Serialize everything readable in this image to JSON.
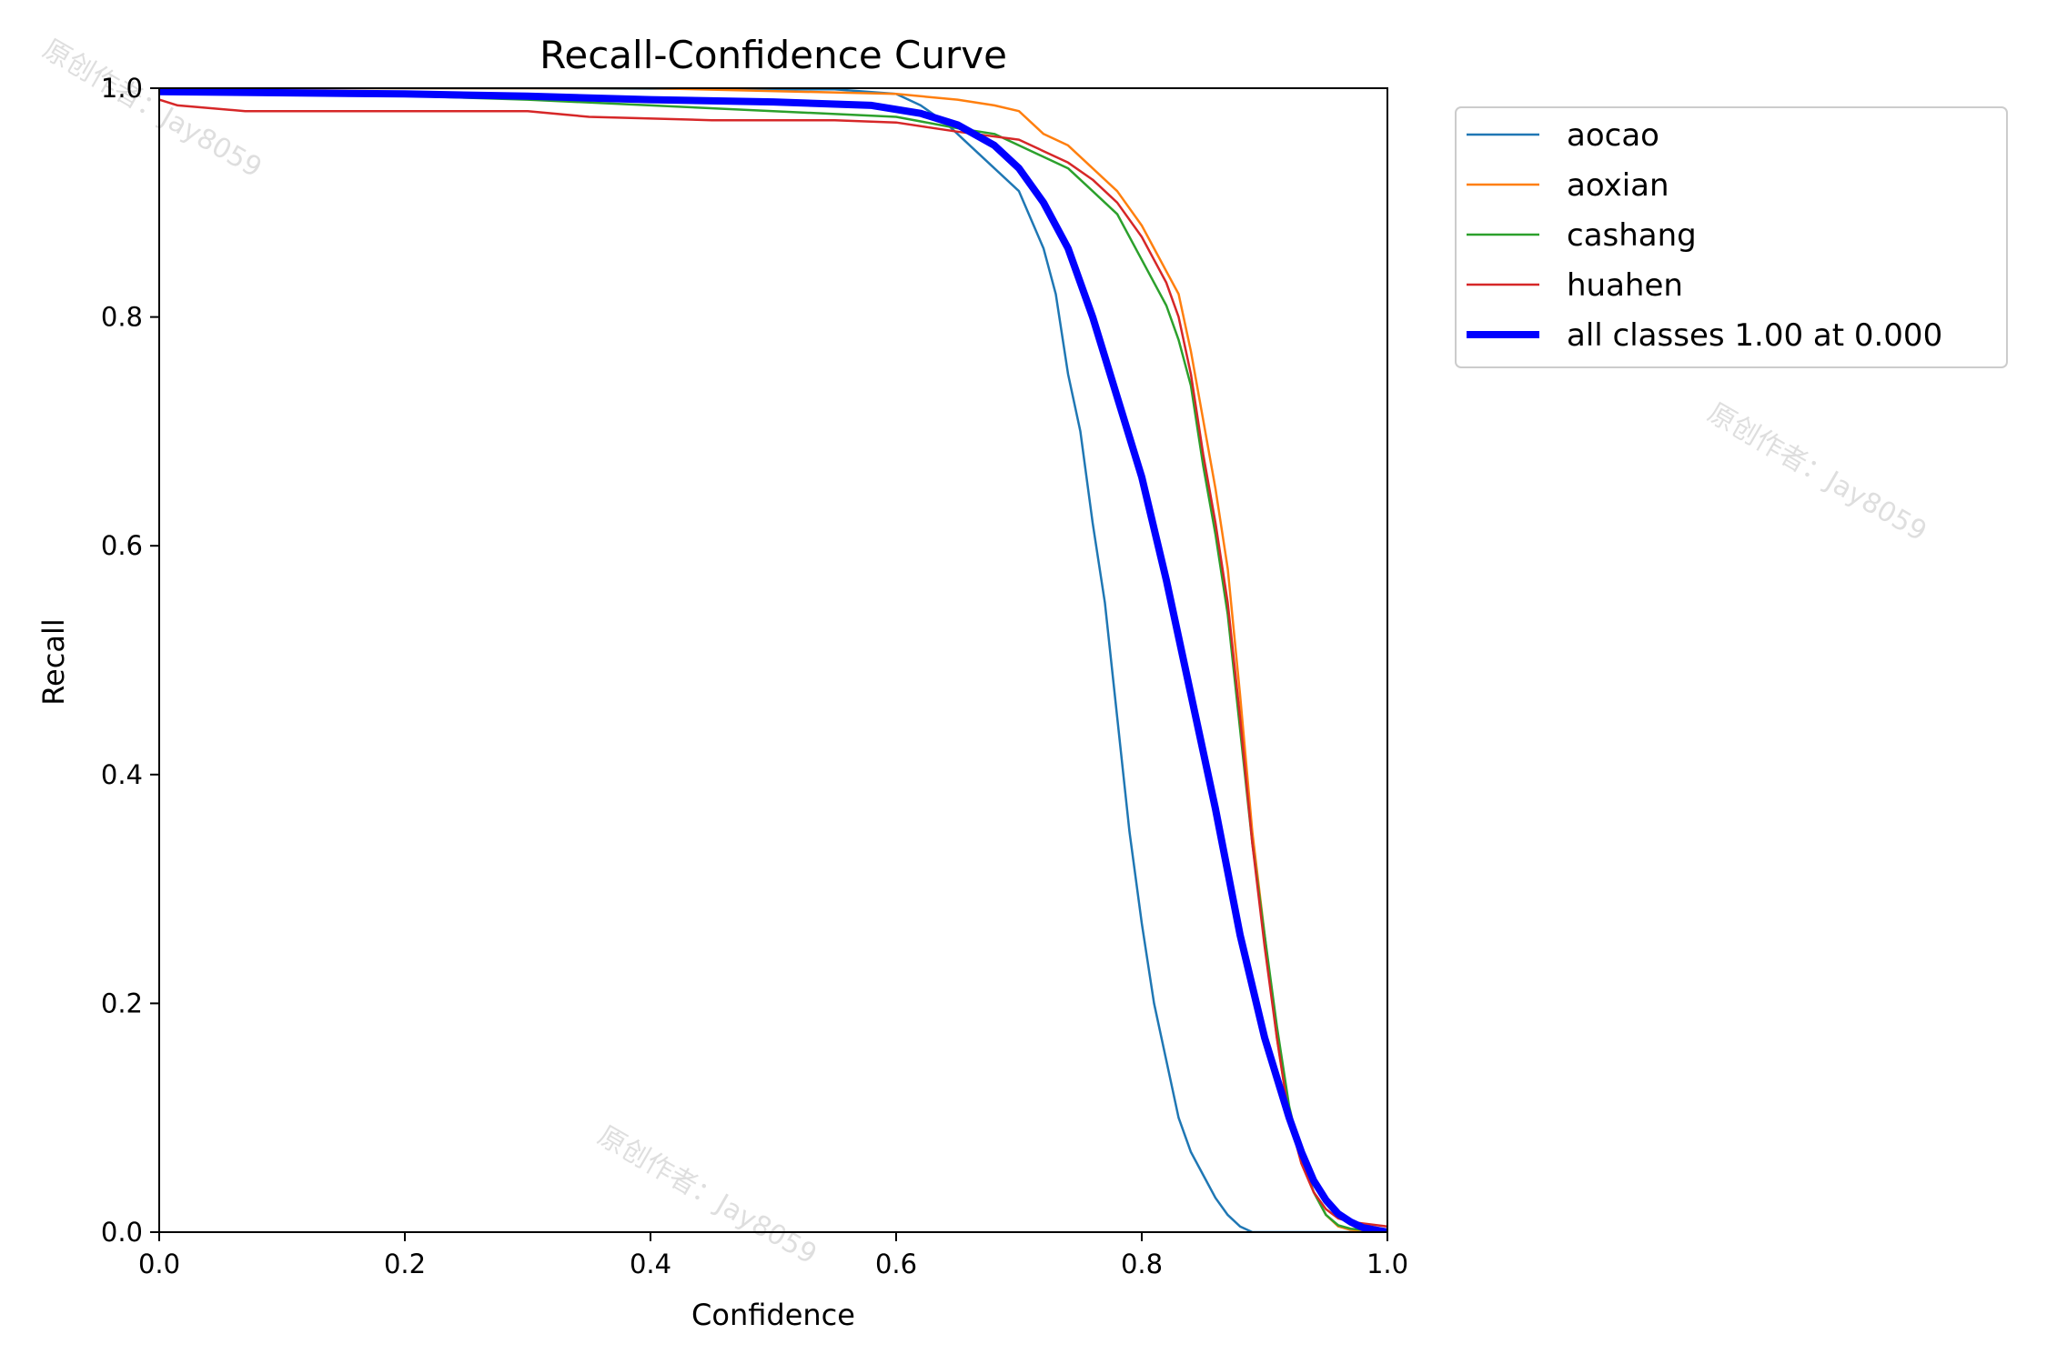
{
  "chart_data": {
    "type": "line",
    "title": "Recall-Confidence Curve",
    "xlabel": "Confidence",
    "ylabel": "Recall",
    "xlim": [
      0,
      1
    ],
    "ylim": [
      0,
      1
    ],
    "xticks": [
      "0.0",
      "0.2",
      "0.4",
      "0.6",
      "0.8",
      "1.0"
    ],
    "yticks": [
      "0.0",
      "0.2",
      "0.4",
      "0.6",
      "0.8",
      "1.0"
    ],
    "grid": false,
    "legend_position": "outside-top-right",
    "series": [
      {
        "name": "aocao",
        "color": "#1f77b4",
        "points": [
          [
            0,
            1.0
          ],
          [
            0.3,
            1.0
          ],
          [
            0.55,
            0.999
          ],
          [
            0.6,
            0.995
          ],
          [
            0.62,
            0.985
          ],
          [
            0.64,
            0.97
          ],
          [
            0.66,
            0.95
          ],
          [
            0.68,
            0.93
          ],
          [
            0.7,
            0.91
          ],
          [
            0.72,
            0.86
          ],
          [
            0.73,
            0.82
          ],
          [
            0.74,
            0.75
          ],
          [
            0.75,
            0.7
          ],
          [
            0.76,
            0.62
          ],
          [
            0.77,
            0.55
          ],
          [
            0.78,
            0.45
          ],
          [
            0.79,
            0.35
          ],
          [
            0.8,
            0.27
          ],
          [
            0.81,
            0.2
          ],
          [
            0.82,
            0.15
          ],
          [
            0.83,
            0.1
          ],
          [
            0.84,
            0.07
          ],
          [
            0.85,
            0.05
          ],
          [
            0.86,
            0.03
          ],
          [
            0.87,
            0.015
          ],
          [
            0.88,
            0.005
          ],
          [
            0.89,
            0.0
          ],
          [
            1.0,
            0.0
          ]
        ]
      },
      {
        "name": "aoxian",
        "color": "#ff7f0e",
        "points": [
          [
            0,
            1.0
          ],
          [
            0.4,
            1.0
          ],
          [
            0.6,
            0.995
          ],
          [
            0.65,
            0.99
          ],
          [
            0.68,
            0.985
          ],
          [
            0.7,
            0.98
          ],
          [
            0.72,
            0.96
          ],
          [
            0.74,
            0.95
          ],
          [
            0.76,
            0.93
          ],
          [
            0.78,
            0.91
          ],
          [
            0.8,
            0.88
          ],
          [
            0.82,
            0.84
          ],
          [
            0.83,
            0.82
          ],
          [
            0.84,
            0.77
          ],
          [
            0.85,
            0.71
          ],
          [
            0.86,
            0.65
          ],
          [
            0.87,
            0.58
          ],
          [
            0.88,
            0.47
          ],
          [
            0.89,
            0.35
          ],
          [
            0.9,
            0.26
          ],
          [
            0.91,
            0.17
          ],
          [
            0.92,
            0.1
          ],
          [
            0.93,
            0.06
          ],
          [
            0.94,
            0.035
          ],
          [
            0.95,
            0.015
          ],
          [
            0.96,
            0.005
          ],
          [
            0.97,
            0.002
          ],
          [
            1.0,
            0.0
          ]
        ]
      },
      {
        "name": "cashang",
        "color": "#2ca02c",
        "points": [
          [
            0,
            1.0
          ],
          [
            0.3,
            0.99
          ],
          [
            0.5,
            0.98
          ],
          [
            0.6,
            0.975
          ],
          [
            0.65,
            0.965
          ],
          [
            0.68,
            0.96
          ],
          [
            0.7,
            0.95
          ],
          [
            0.72,
            0.94
          ],
          [
            0.74,
            0.93
          ],
          [
            0.76,
            0.91
          ],
          [
            0.78,
            0.89
          ],
          [
            0.8,
            0.85
          ],
          [
            0.82,
            0.81
          ],
          [
            0.83,
            0.78
          ],
          [
            0.84,
            0.74
          ],
          [
            0.85,
            0.67
          ],
          [
            0.86,
            0.61
          ],
          [
            0.87,
            0.54
          ],
          [
            0.88,
            0.44
          ],
          [
            0.89,
            0.34
          ],
          [
            0.9,
            0.26
          ],
          [
            0.91,
            0.18
          ],
          [
            0.92,
            0.11
          ],
          [
            0.93,
            0.065
          ],
          [
            0.94,
            0.035
          ],
          [
            0.95,
            0.015
          ],
          [
            0.96,
            0.006
          ],
          [
            0.97,
            0.003
          ],
          [
            1.0,
            0.0
          ]
        ]
      },
      {
        "name": "huahen",
        "color": "#d62728",
        "points": [
          [
            0,
            0.99
          ],
          [
            0.015,
            0.985
          ],
          [
            0.07,
            0.98
          ],
          [
            0.3,
            0.98
          ],
          [
            0.35,
            0.975
          ],
          [
            0.45,
            0.972
          ],
          [
            0.55,
            0.972
          ],
          [
            0.6,
            0.97
          ],
          [
            0.65,
            0.962
          ],
          [
            0.7,
            0.955
          ],
          [
            0.72,
            0.945
          ],
          [
            0.74,
            0.935
          ],
          [
            0.76,
            0.92
          ],
          [
            0.78,
            0.9
          ],
          [
            0.8,
            0.87
          ],
          [
            0.82,
            0.83
          ],
          [
            0.83,
            0.8
          ],
          [
            0.84,
            0.75
          ],
          [
            0.85,
            0.68
          ],
          [
            0.86,
            0.62
          ],
          [
            0.87,
            0.55
          ],
          [
            0.88,
            0.45
          ],
          [
            0.89,
            0.34
          ],
          [
            0.9,
            0.25
          ],
          [
            0.91,
            0.17
          ],
          [
            0.92,
            0.1
          ],
          [
            0.93,
            0.06
          ],
          [
            0.94,
            0.035
          ],
          [
            0.95,
            0.02
          ],
          [
            0.96,
            0.012
          ],
          [
            0.97,
            0.009
          ],
          [
            1.0,
            0.005
          ]
        ]
      },
      {
        "name": "all classes 1.00 at 0.000",
        "color": "#0000ff",
        "bold": true,
        "points": [
          [
            0,
            0.997
          ],
          [
            0.2,
            0.995
          ],
          [
            0.3,
            0.993
          ],
          [
            0.4,
            0.99
          ],
          [
            0.5,
            0.988
          ],
          [
            0.58,
            0.985
          ],
          [
            0.62,
            0.978
          ],
          [
            0.65,
            0.968
          ],
          [
            0.68,
            0.95
          ],
          [
            0.7,
            0.93
          ],
          [
            0.72,
            0.9
          ],
          [
            0.74,
            0.86
          ],
          [
            0.76,
            0.8
          ],
          [
            0.78,
            0.73
          ],
          [
            0.8,
            0.66
          ],
          [
            0.82,
            0.57
          ],
          [
            0.84,
            0.47
          ],
          [
            0.86,
            0.37
          ],
          [
            0.88,
            0.26
          ],
          [
            0.9,
            0.17
          ],
          [
            0.92,
            0.1
          ],
          [
            0.93,
            0.07
          ],
          [
            0.94,
            0.045
          ],
          [
            0.95,
            0.028
          ],
          [
            0.96,
            0.016
          ],
          [
            0.97,
            0.009
          ],
          [
            0.98,
            0.004
          ],
          [
            0.99,
            0.002
          ],
          [
            1.0,
            0.0
          ]
        ]
      }
    ]
  },
  "watermark_text": "原创作者：Jay8059"
}
